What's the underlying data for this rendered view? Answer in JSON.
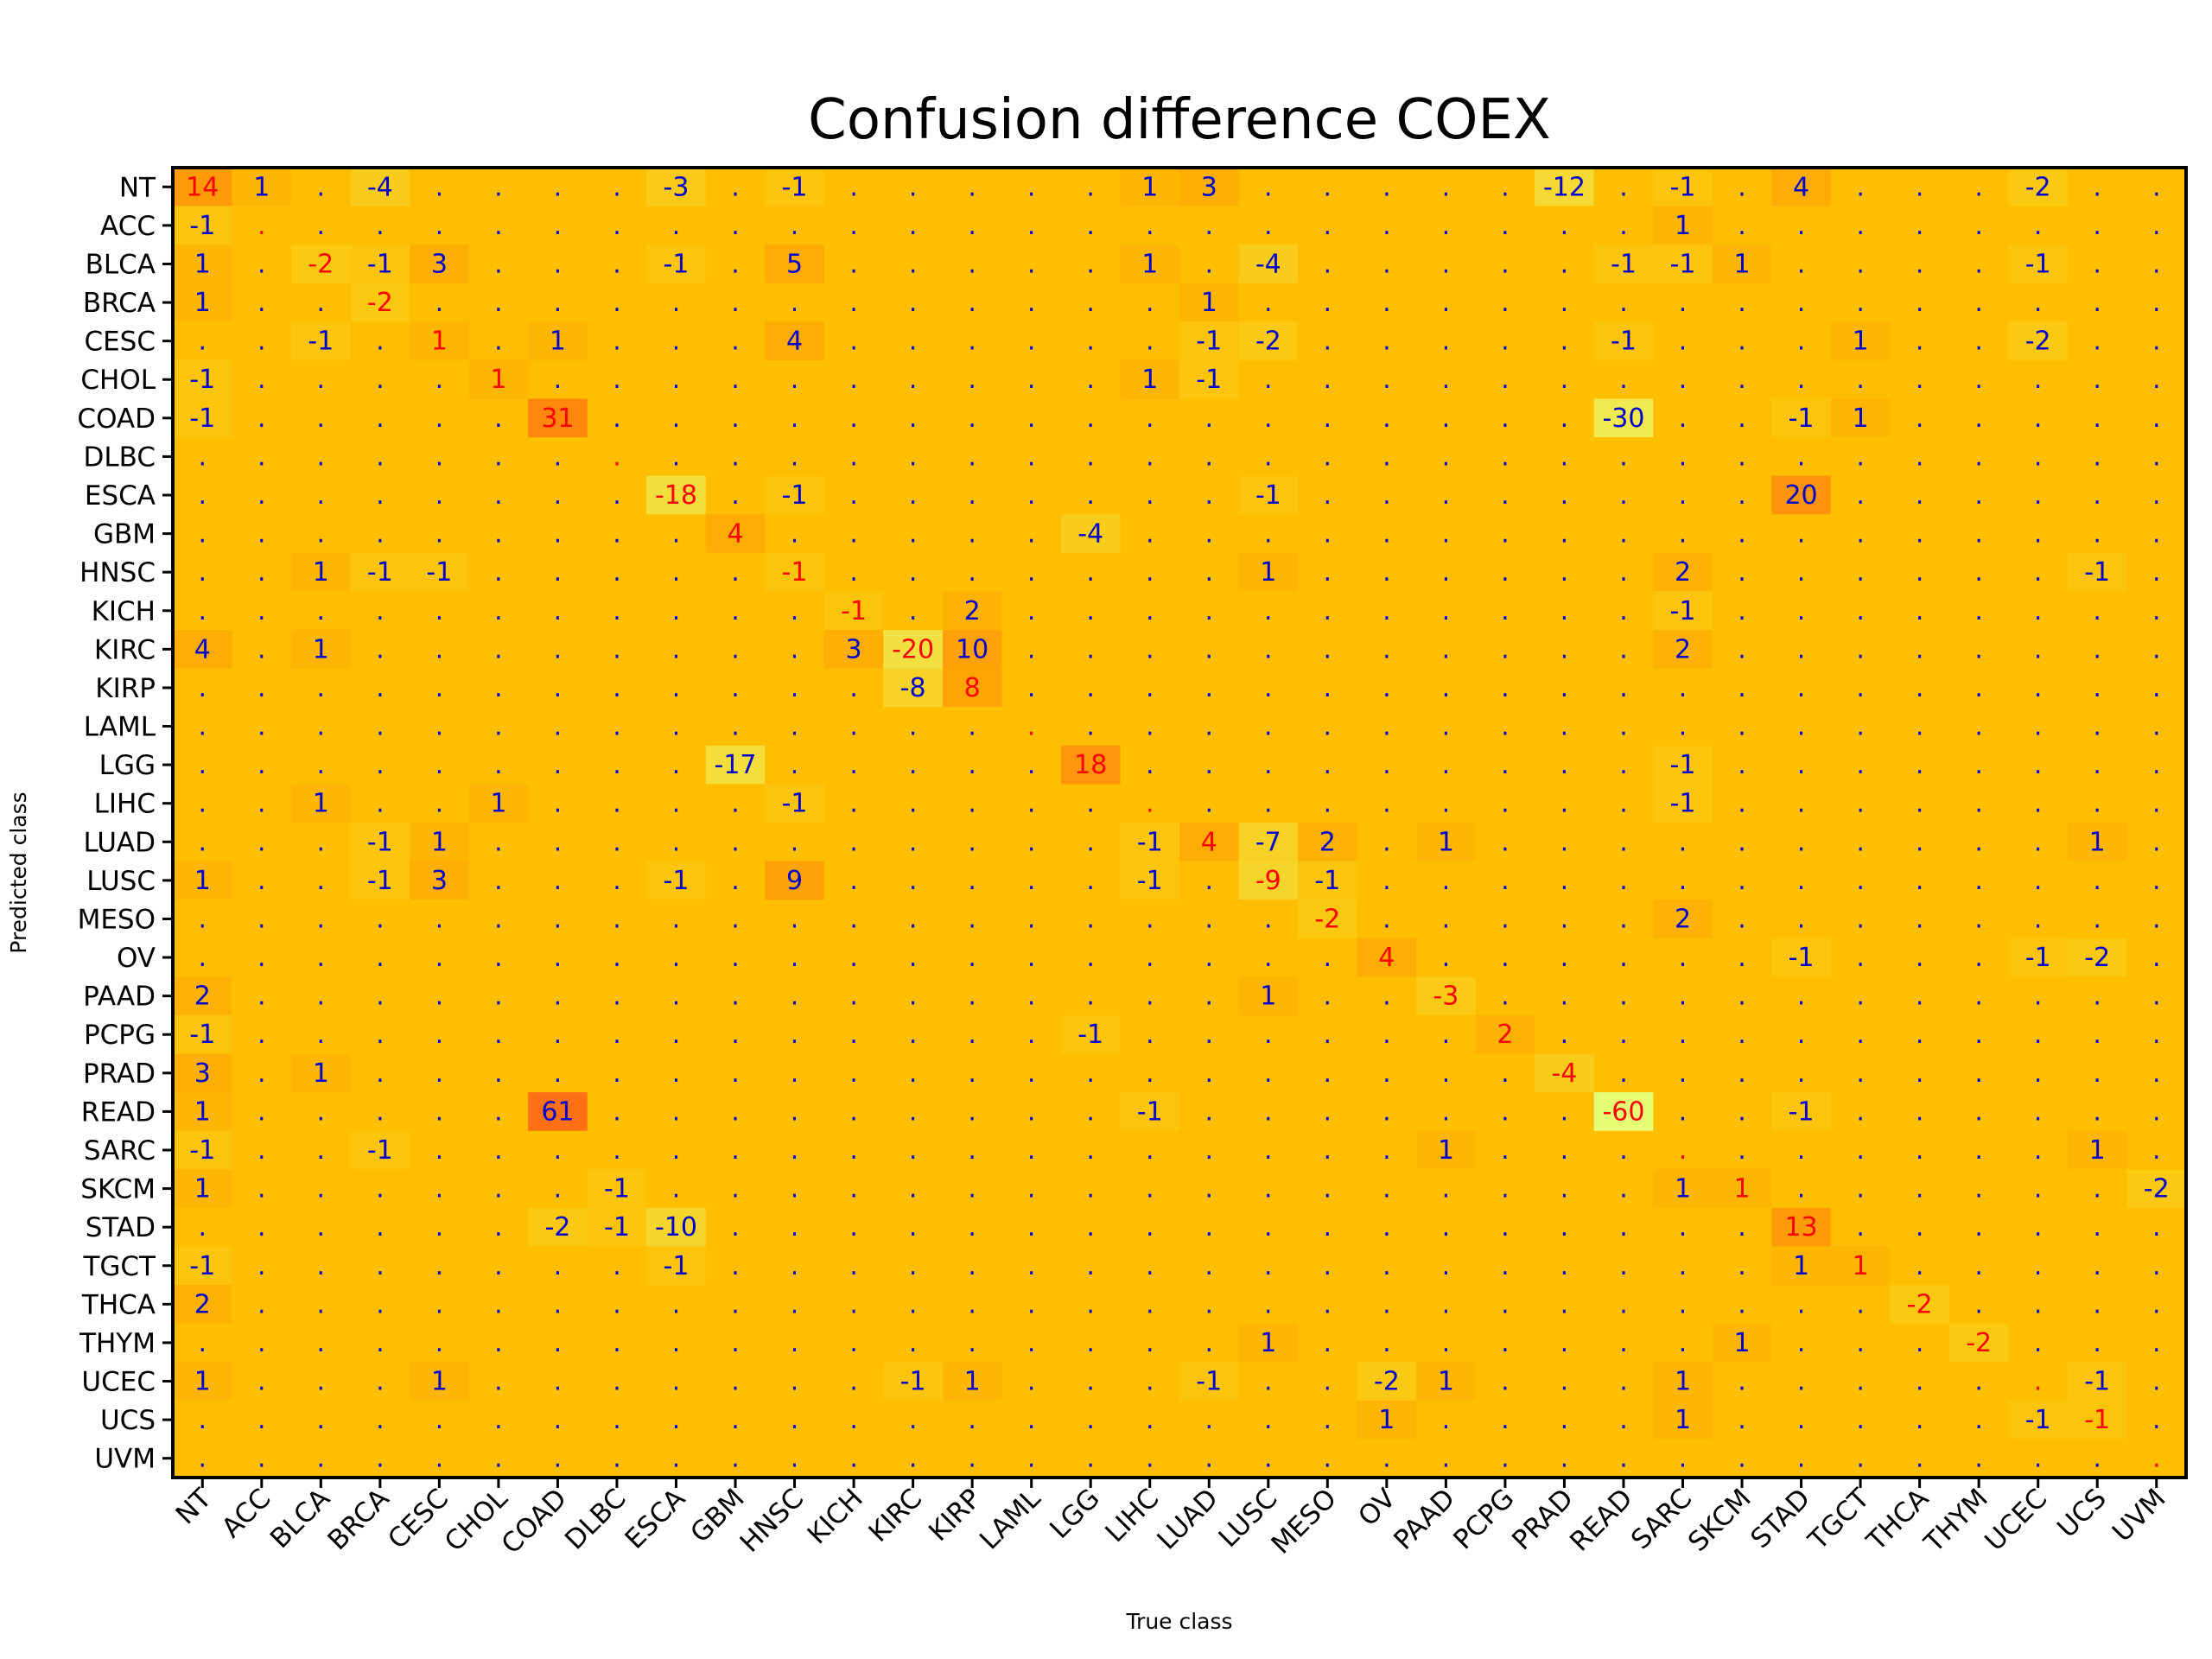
{
  "chart_data": {
    "type": "heatmap",
    "title": "Confusion difference COEX",
    "xlabel": "True class",
    "ylabel": "Predicted class",
    "categories": [
      "NT",
      "ACC",
      "BLCA",
      "BRCA",
      "CESC",
      "CHOL",
      "COAD",
      "DLBC",
      "ESCA",
      "GBM",
      "HNSC",
      "KICH",
      "KIRC",
      "KIRP",
      "LAML",
      "LGG",
      "LIHC",
      "LUAD",
      "LUSC",
      "MESO",
      "OV",
      "PAAD",
      "PCPG",
      "PRAD",
      "READ",
      "SARC",
      "SKCM",
      "STAD",
      "TGCT",
      "THCA",
      "THYM",
      "UCEC",
      "UCS",
      "UVM"
    ],
    "zero_symbol": ".",
    "diagonal_color": "#ff0000",
    "offdiagonal_color": "#0000cc",
    "matrix": [
      [
        14,
        1,
        0,
        -4,
        0,
        0,
        0,
        0,
        -3,
        0,
        -1,
        0,
        0,
        0,
        0,
        0,
        1,
        3,
        0,
        0,
        0,
        0,
        0,
        -12,
        0,
        -1,
        0,
        4,
        0,
        0,
        0,
        -2,
        0,
        0
      ],
      [
        -1,
        0,
        0,
        0,
        0,
        0,
        0,
        0,
        0,
        0,
        0,
        0,
        0,
        0,
        0,
        0,
        0,
        0,
        0,
        0,
        0,
        0,
        0,
        0,
        0,
        1,
        0,
        0,
        0,
        0,
        0,
        0,
        0,
        0
      ],
      [
        1,
        0,
        -2,
        -1,
        3,
        0,
        0,
        0,
        -1,
        0,
        5,
        0,
        0,
        0,
        0,
        0,
        1,
        0,
        -4,
        0,
        0,
        0,
        0,
        0,
        -1,
        -1,
        1,
        0,
        0,
        0,
        0,
        -1,
        0,
        0
      ],
      [
        1,
        0,
        0,
        -2,
        0,
        0,
        0,
        0,
        0,
        0,
        0,
        0,
        0,
        0,
        0,
        0,
        0,
        1,
        0,
        0,
        0,
        0,
        0,
        0,
        0,
        0,
        0,
        0,
        0,
        0,
        0,
        0,
        0,
        0
      ],
      [
        0,
        0,
        -1,
        0,
        1,
        0,
        1,
        0,
        0,
        0,
        4,
        0,
        0,
        0,
        0,
        0,
        0,
        -1,
        -2,
        0,
        0,
        0,
        0,
        0,
        -1,
        0,
        0,
        0,
        1,
        0,
        0,
        -2,
        0,
        0
      ],
      [
        -1,
        0,
        0,
        0,
        0,
        1,
        0,
        0,
        0,
        0,
        0,
        0,
        0,
        0,
        0,
        0,
        1,
        -1,
        0,
        0,
        0,
        0,
        0,
        0,
        0,
        0,
        0,
        0,
        0,
        0,
        0,
        0,
        0,
        0
      ],
      [
        -1,
        0,
        0,
        0,
        0,
        0,
        31,
        0,
        0,
        0,
        0,
        0,
        0,
        0,
        0,
        0,
        0,
        0,
        0,
        0,
        0,
        0,
        0,
        0,
        -30,
        0,
        0,
        -1,
        1,
        0,
        0,
        0,
        0,
        0
      ],
      [
        0,
        0,
        0,
        0,
        0,
        0,
        0,
        0,
        0,
        0,
        0,
        0,
        0,
        0,
        0,
        0,
        0,
        0,
        0,
        0,
        0,
        0,
        0,
        0,
        0,
        0,
        0,
        0,
        0,
        0,
        0,
        0,
        0,
        0
      ],
      [
        0,
        0,
        0,
        0,
        0,
        0,
        0,
        0,
        -18,
        0,
        -1,
        0,
        0,
        0,
        0,
        0,
        0,
        0,
        -1,
        0,
        0,
        0,
        0,
        0,
        0,
        0,
        0,
        20,
        0,
        0,
        0,
        0,
        0,
        0
      ],
      [
        0,
        0,
        0,
        0,
        0,
        0,
        0,
        0,
        0,
        4,
        0,
        0,
        0,
        0,
        0,
        -4,
        0,
        0,
        0,
        0,
        0,
        0,
        0,
        0,
        0,
        0,
        0,
        0,
        0,
        0,
        0,
        0,
        0,
        0
      ],
      [
        0,
        0,
        1,
        -1,
        -1,
        0,
        0,
        0,
        0,
        0,
        -1,
        0,
        0,
        0,
        0,
        0,
        0,
        0,
        1,
        0,
        0,
        0,
        0,
        0,
        0,
        2,
        0,
        0,
        0,
        0,
        0,
        0,
        -1,
        0
      ],
      [
        0,
        0,
        0,
        0,
        0,
        0,
        0,
        0,
        0,
        0,
        0,
        -1,
        0,
        2,
        0,
        0,
        0,
        0,
        0,
        0,
        0,
        0,
        0,
        0,
        0,
        -1,
        0,
        0,
        0,
        0,
        0,
        0,
        0,
        0
      ],
      [
        4,
        0,
        1,
        0,
        0,
        0,
        0,
        0,
        0,
        0,
        0,
        3,
        -20,
        10,
        0,
        0,
        0,
        0,
        0,
        0,
        0,
        0,
        0,
        0,
        0,
        2,
        0,
        0,
        0,
        0,
        0,
        0,
        0,
        0
      ],
      [
        0,
        0,
        0,
        0,
        0,
        0,
        0,
        0,
        0,
        0,
        0,
        0,
        -8,
        8,
        0,
        0,
        0,
        0,
        0,
        0,
        0,
        0,
        0,
        0,
        0,
        0,
        0,
        0,
        0,
        0,
        0,
        0,
        0,
        0
      ],
      [
        0,
        0,
        0,
        0,
        0,
        0,
        0,
        0,
        0,
        0,
        0,
        0,
        0,
        0,
        0,
        0,
        0,
        0,
        0,
        0,
        0,
        0,
        0,
        0,
        0,
        0,
        0,
        0,
        0,
        0,
        0,
        0,
        0,
        0
      ],
      [
        0,
        0,
        0,
        0,
        0,
        0,
        0,
        0,
        0,
        -17,
        0,
        0,
        0,
        0,
        0,
        18,
        0,
        0,
        0,
        0,
        0,
        0,
        0,
        0,
        0,
        -1,
        0,
        0,
        0,
        0,
        0,
        0,
        0,
        0
      ],
      [
        0,
        0,
        1,
        0,
        0,
        1,
        0,
        0,
        0,
        0,
        -1,
        0,
        0,
        0,
        0,
        0,
        0,
        0,
        0,
        0,
        0,
        0,
        0,
        0,
        0,
        -1,
        0,
        0,
        0,
        0,
        0,
        0,
        0,
        0
      ],
      [
        0,
        0,
        0,
        -1,
        1,
        0,
        0,
        0,
        0,
        0,
        0,
        0,
        0,
        0,
        0,
        0,
        -1,
        4,
        -7,
        2,
        0,
        1,
        0,
        0,
        0,
        0,
        0,
        0,
        0,
        0,
        0,
        0,
        1,
        0
      ],
      [
        1,
        0,
        0,
        -1,
        3,
        0,
        0,
        0,
        -1,
        0,
        9,
        0,
        0,
        0,
        0,
        0,
        -1,
        0,
        -9,
        -1,
        0,
        0,
        0,
        0,
        0,
        0,
        0,
        0,
        0,
        0,
        0,
        0,
        0,
        0
      ],
      [
        0,
        0,
        0,
        0,
        0,
        0,
        0,
        0,
        0,
        0,
        0,
        0,
        0,
        0,
        0,
        0,
        0,
        0,
        0,
        -2,
        0,
        0,
        0,
        0,
        0,
        2,
        0,
        0,
        0,
        0,
        0,
        0,
        0,
        0
      ],
      [
        0,
        0,
        0,
        0,
        0,
        0,
        0,
        0,
        0,
        0,
        0,
        0,
        0,
        0,
        0,
        0,
        0,
        0,
        0,
        0,
        4,
        0,
        0,
        0,
        0,
        0,
        0,
        -1,
        0,
        0,
        0,
        -1,
        -2,
        0
      ],
      [
        2,
        0,
        0,
        0,
        0,
        0,
        0,
        0,
        0,
        0,
        0,
        0,
        0,
        0,
        0,
        0,
        0,
        0,
        1,
        0,
        0,
        -3,
        0,
        0,
        0,
        0,
        0,
        0,
        0,
        0,
        0,
        0,
        0,
        0
      ],
      [
        -1,
        0,
        0,
        0,
        0,
        0,
        0,
        0,
        0,
        0,
        0,
        0,
        0,
        0,
        0,
        -1,
        0,
        0,
        0,
        0,
        0,
        0,
        2,
        0,
        0,
        0,
        0,
        0,
        0,
        0,
        0,
        0,
        0,
        0
      ],
      [
        3,
        0,
        1,
        0,
        0,
        0,
        0,
        0,
        0,
        0,
        0,
        0,
        0,
        0,
        0,
        0,
        0,
        0,
        0,
        0,
        0,
        0,
        0,
        -4,
        0,
        0,
        0,
        0,
        0,
        0,
        0,
        0,
        0,
        0
      ],
      [
        1,
        0,
        0,
        0,
        0,
        0,
        61,
        0,
        0,
        0,
        0,
        0,
        0,
        0,
        0,
        0,
        -1,
        0,
        0,
        0,
        0,
        0,
        0,
        0,
        -60,
        0,
        0,
        -1,
        0,
        0,
        0,
        0,
        0,
        0
      ],
      [
        -1,
        0,
        0,
        -1,
        0,
        0,
        0,
        0,
        0,
        0,
        0,
        0,
        0,
        0,
        0,
        0,
        0,
        0,
        0,
        0,
        0,
        1,
        0,
        0,
        0,
        0,
        0,
        0,
        0,
        0,
        0,
        0,
        1,
        0
      ],
      [
        1,
        0,
        0,
        0,
        0,
        0,
        0,
        -1,
        0,
        0,
        0,
        0,
        0,
        0,
        0,
        0,
        0,
        0,
        0,
        0,
        0,
        0,
        0,
        0,
        0,
        1,
        1,
        0,
        0,
        0,
        0,
        0,
        0,
        -2
      ],
      [
        0,
        0,
        0,
        0,
        0,
        0,
        -2,
        -1,
        -10,
        0,
        0,
        0,
        0,
        0,
        0,
        0,
        0,
        0,
        0,
        0,
        0,
        0,
        0,
        0,
        0,
        0,
        0,
        13,
        0,
        0,
        0,
        0,
        0,
        0
      ],
      [
        -1,
        0,
        0,
        0,
        0,
        0,
        0,
        0,
        -1,
        0,
        0,
        0,
        0,
        0,
        0,
        0,
        0,
        0,
        0,
        0,
        0,
        0,
        0,
        0,
        0,
        0,
        0,
        1,
        1,
        0,
        0,
        0,
        0,
        0
      ],
      [
        2,
        0,
        0,
        0,
        0,
        0,
        0,
        0,
        0,
        0,
        0,
        0,
        0,
        0,
        0,
        0,
        0,
        0,
        0,
        0,
        0,
        0,
        0,
        0,
        0,
        0,
        0,
        0,
        0,
        -2,
        0,
        0,
        0,
        0
      ],
      [
        0,
        0,
        0,
        0,
        0,
        0,
        0,
        0,
        0,
        0,
        0,
        0,
        0,
        0,
        0,
        0,
        0,
        0,
        1,
        0,
        0,
        0,
        0,
        0,
        0,
        0,
        1,
        0,
        0,
        0,
        -2,
        0,
        0,
        0
      ],
      [
        1,
        0,
        0,
        0,
        1,
        0,
        0,
        0,
        0,
        0,
        0,
        0,
        -1,
        1,
        0,
        0,
        0,
        -1,
        0,
        0,
        -2,
        1,
        0,
        0,
        0,
        1,
        0,
        0,
        0,
        0,
        0,
        0,
        -1,
        0
      ],
      [
        0,
        0,
        0,
        0,
        0,
        0,
        0,
        0,
        0,
        0,
        0,
        0,
        0,
        0,
        0,
        0,
        0,
        0,
        0,
        0,
        1,
        0,
        0,
        0,
        0,
        1,
        0,
        0,
        0,
        0,
        0,
        -1,
        -1,
        0
      ],
      [
        0,
        0,
        0,
        0,
        0,
        0,
        0,
        0,
        0,
        0,
        0,
        0,
        0,
        0,
        0,
        0,
        0,
        0,
        0,
        0,
        0,
        0,
        0,
        0,
        0,
        0,
        0,
        0,
        0,
        0,
        0,
        0,
        0,
        0
      ]
    ]
  }
}
